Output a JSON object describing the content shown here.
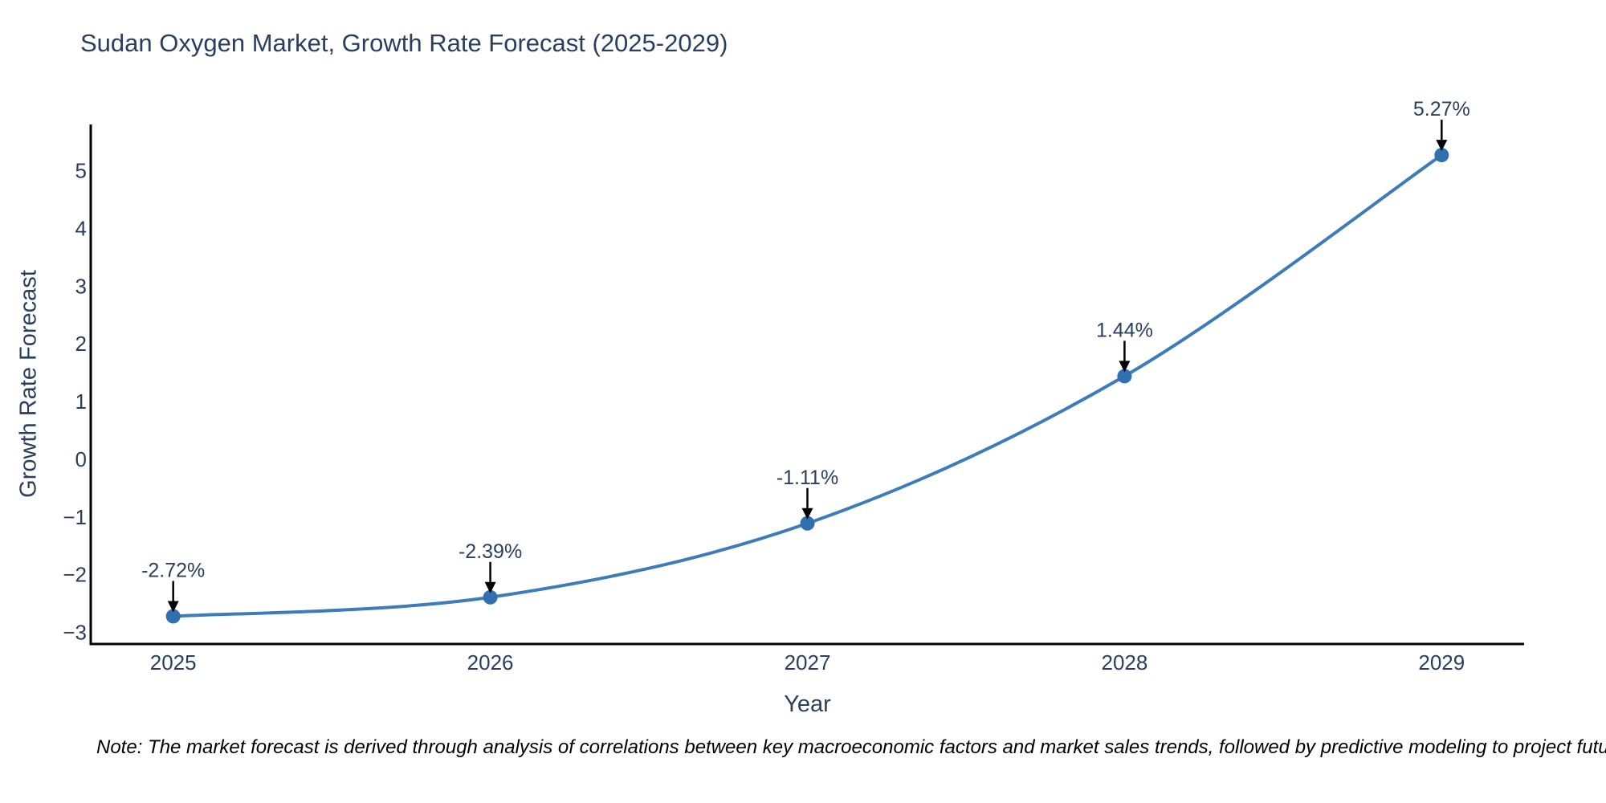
{
  "chart_data": {
    "type": "line",
    "line_shape": "spline",
    "x": [
      2025,
      2026,
      2027,
      2028,
      2029
    ],
    "x_tick_labels": [
      "2025",
      "2026",
      "2027",
      "2028",
      "2029"
    ],
    "values": [
      -2.72,
      -2.39,
      -1.11,
      1.44,
      5.27
    ],
    "point_labels": [
      "-2.72%",
      "-2.39%",
      "-1.11%",
      "1.44%",
      "5.27%"
    ],
    "title": "Sudan Oxygen Market, Growth Rate Forecast (2025-2029)",
    "xlabel": "Year",
    "ylabel": "Growth Rate Forecast",
    "y_ticks": [
      -3,
      -2,
      -1,
      0,
      1,
      2,
      3,
      4,
      5
    ],
    "xlim": [
      2024.74,
      2029.26
    ],
    "ylim": [
      -3.2,
      5.8
    ],
    "grid": false,
    "legend": "none",
    "background": "#ffffff",
    "markers": true,
    "annotations_have_arrows": true,
    "footnote": "Note: The market forecast is derived through analysis of correlations between key macroeconomic factors and market sales trends, followed by predictive modeling to project future sales",
    "colors": {
      "line": "#3d7cba",
      "marker": "#316fae",
      "text": "#2a3f5f",
      "axis": "#000000",
      "arrow": "#000000",
      "footnote_text": "#000000"
    }
  }
}
